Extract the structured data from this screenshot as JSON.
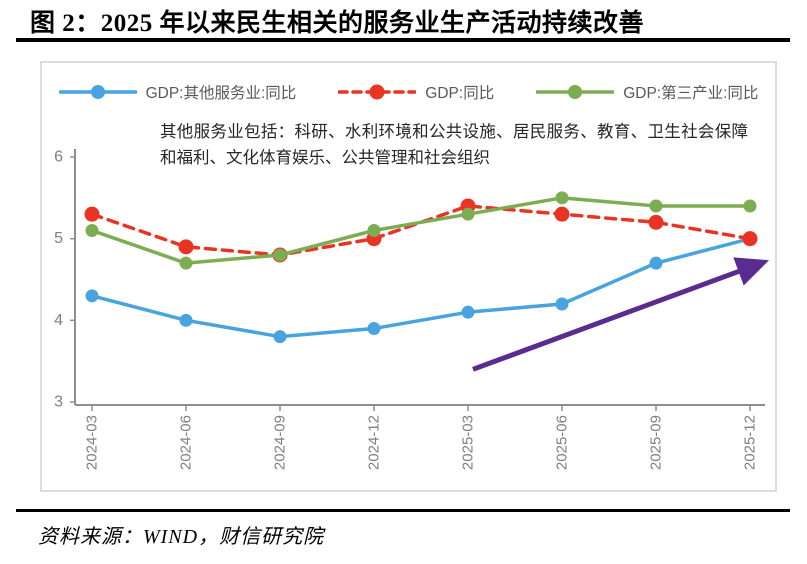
{
  "title": "图 2：2025 年以来民生相关的服务业生产活动持续改善",
  "source": "资料来源：WIND，财信研究院",
  "chart_data": {
    "type": "line",
    "categories": [
      "2024-03",
      "2024-06",
      "2024-09",
      "2024-12",
      "2025-03",
      "2025-06",
      "2025-09",
      "2025-12"
    ],
    "series": [
      {
        "name": "GDP:其他服务业:同比",
        "color": "#47a4df",
        "style": "solid",
        "values": [
          4.3,
          4.0,
          3.8,
          3.9,
          4.1,
          4.2,
          4.7,
          5.0
        ]
      },
      {
        "name": "GDP:同比",
        "color": "#e93323",
        "style": "dashed",
        "values": [
          5.3,
          4.9,
          4.8,
          5.0,
          5.4,
          5.3,
          5.2,
          5.0
        ]
      },
      {
        "name": "GDP:第三产业:同比",
        "color": "#7cad53",
        "style": "solid",
        "values": [
          5.1,
          4.7,
          4.8,
          5.1,
          5.3,
          5.5,
          5.4,
          5.4
        ]
      }
    ],
    "note": "其他服务业包括：科研、水利环境和公共设施、居民服务、教育、卫生社会保障和福利、文化体育娱乐、公共管理和社会组织",
    "ylim": [
      3,
      6
    ],
    "yticks": [
      3,
      4,
      5,
      6
    ],
    "grid": false,
    "legend_position": "top",
    "axis_color": "#8e8e8e",
    "tick_label_color": "#7f7f7f",
    "annotations": [
      {
        "type": "trend-arrow",
        "color": "#5b2c90",
        "from": {
          "category": "2025-03",
          "value": 3.4
        },
        "to": {
          "category": "2025-12",
          "value": 4.7
        }
      }
    ]
  }
}
